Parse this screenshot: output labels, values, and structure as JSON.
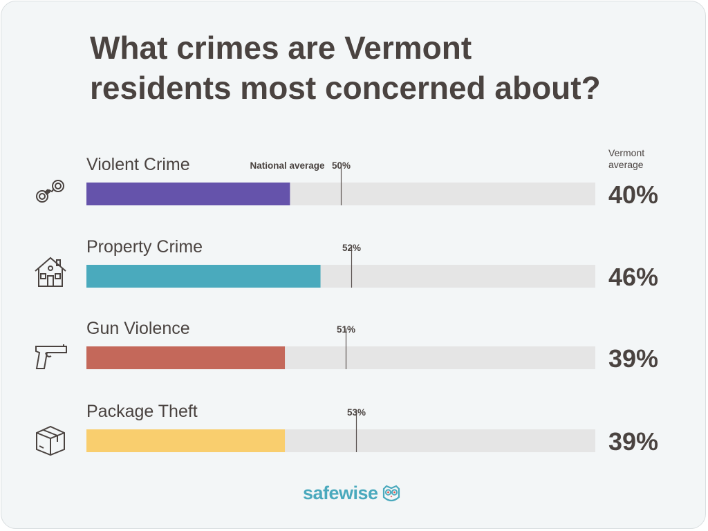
{
  "title_line1": "What crimes are Vermont",
  "title_line2": "residents most concerned about?",
  "vermont_label_line1": "Vermont",
  "vermont_label_line2": "average",
  "national_label": "National average",
  "logo": {
    "text": "safewise",
    "icon": "owl-icon"
  },
  "colors": {
    "track": "#e5e5e5",
    "text": "#4a4340",
    "brand": "#4aa9bd"
  },
  "chart_data": {
    "type": "bar",
    "orientation": "horizontal",
    "title": "What crimes are Vermont residents most concerned about?",
    "xlim": [
      0,
      100
    ],
    "categories": [
      "Violent Crime",
      "Property Crime",
      "Gun Violence",
      "Package Theft"
    ],
    "icons": [
      "handcuffs-icon",
      "house-icon",
      "handgun-icon",
      "package-icon"
    ],
    "series": [
      {
        "name": "Vermont average",
        "values": [
          40,
          46,
          39,
          39
        ],
        "labels": [
          "40%",
          "46%",
          "39%",
          "39%"
        ],
        "colors": [
          "#6553ab",
          "#4aaabd",
          "#c4685a",
          "#f9ce6e"
        ]
      },
      {
        "name": "National average",
        "values": [
          50,
          52,
          51,
          53
        ],
        "labels": [
          "50%",
          "52%",
          "51%",
          "53%"
        ]
      }
    ]
  }
}
